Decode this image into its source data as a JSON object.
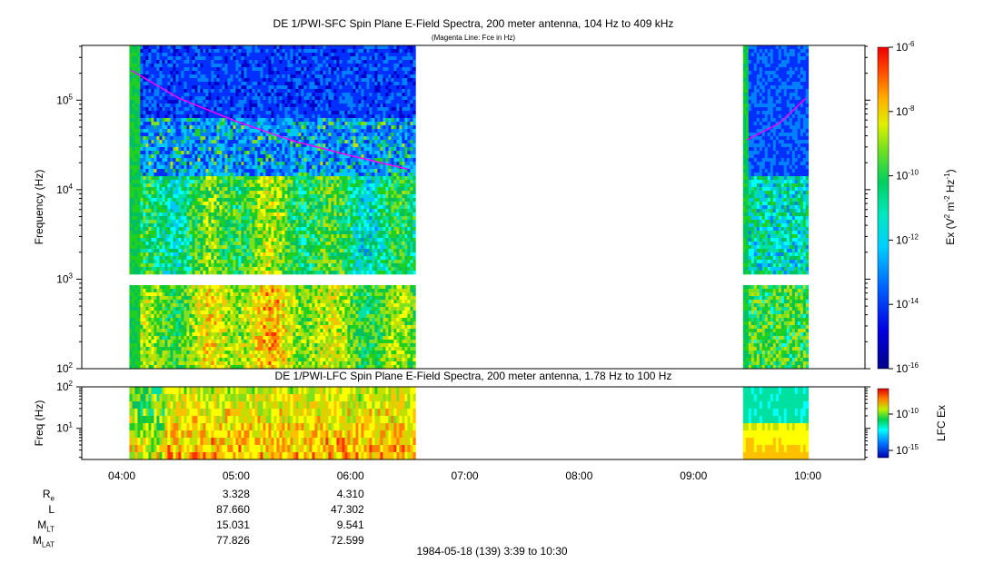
{
  "colors": {
    "background_plot": "#ffffff",
    "fce_line": "#ff00ff",
    "colormap": [
      "#000080",
      "#0000c8",
      "#0030ff",
      "#0080ff",
      "#00c8ff",
      "#00ffff",
      "#00e0a0",
      "#00c060",
      "#20d020",
      "#80e020",
      "#c0e000",
      "#ffff00",
      "#ffc000",
      "#ff8000",
      "#ff3000",
      "#e00000"
    ]
  },
  "chart_data": [
    {
      "type": "heatmap",
      "title": "DE 1/PWI-SFC  Spin Plane E-Field Spectra, 200 meter antenna, 104 Hz to 409 kHz",
      "subtitle": "(Magenta Line: Fce in Hz)",
      "ylabel": "Frequency (Hz)",
      "yscale": "log",
      "ylim": [
        100,
        409000
      ],
      "yticks": [
        "10^2",
        "10^3",
        "10^4",
        "10^5"
      ],
      "colorbar": {
        "label": "Ex (V^2 m^-2 Hz^-1)",
        "scale": "log",
        "range": [
          1e-16,
          1e-06
        ],
        "ticks": [
          "10^-6",
          "10^-8",
          "10^-10",
          "10^-12",
          "10^-14",
          "10^-16"
        ]
      },
      "data_intervals": [
        {
          "start": "04:04",
          "end": "06:34"
        },
        {
          "start": "09:26",
          "end": "09:59"
        }
      ],
      "fce_line": {
        "name": "Fce",
        "segments": [
          {
            "t": [
              "04:05",
              "04:30",
              "05:00",
              "05:30",
              "06:00",
              "06:30"
            ],
            "f": [
              215000,
              105000,
              58000,
              35000,
              24000,
              17000
            ]
          },
          {
            "t": [
              "09:28",
              "09:45",
              "09:59"
            ],
            "f": [
              36000,
              55000,
              105000
            ]
          }
        ]
      }
    },
    {
      "type": "heatmap",
      "title": "DE 1/PWI-LFC  Spin Plane E-Field Spectra, 200 meter antenna, 1.78 Hz to 100 Hz",
      "ylabel": "Freq (Hz)",
      "yscale": "log",
      "ylim": [
        1.78,
        100
      ],
      "yticks": [
        "10^1",
        "10^2"
      ],
      "colorbar": {
        "label": "LFC Ex",
        "scale": "log",
        "ticks": [
          "10^-10",
          "10^-15"
        ]
      },
      "data_intervals": [
        {
          "start": "04:04",
          "end": "06:34"
        },
        {
          "start": "09:26",
          "end": "09:59"
        }
      ]
    }
  ],
  "xaxis": {
    "range": [
      "03:39",
      "10:30"
    ],
    "tick_labels": [
      "04:00",
      "05:00",
      "06:00",
      "07:00",
      "08:00",
      "09:00",
      "10:00"
    ]
  },
  "ephemeris": {
    "rows": [
      {
        "label": "R",
        "sub": "e",
        "values": [
          "3.328",
          "4.310"
        ]
      },
      {
        "label": "L",
        "sub": "",
        "values": [
          "87.660",
          "47.302"
        ]
      },
      {
        "label": "M",
        "sub": "LT",
        "values": [
          "15.031",
          "9.541"
        ]
      },
      {
        "label": "M",
        "sub": "LAT",
        "values": [
          "77.826",
          "72.599"
        ]
      }
    ],
    "columns_at": [
      "05:00",
      "06:00"
    ]
  },
  "footer": "1984-05-18 (139) 3:39 to 10:30"
}
